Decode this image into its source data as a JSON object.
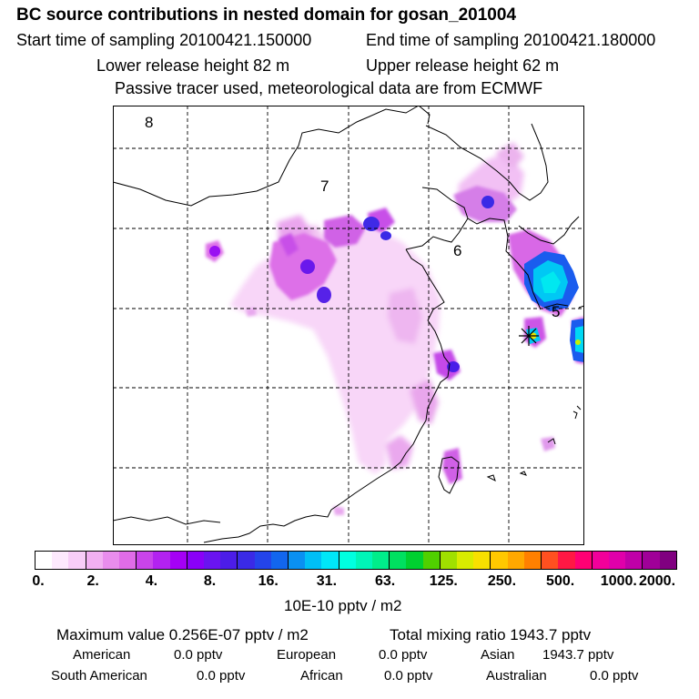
{
  "header": {
    "title": "BC  source contributions in nested domain for gosan_201004",
    "sampling_start": "Start time of sampling 20100421.150000",
    "sampling_end": "End time of sampling 20100421.180000",
    "release_lower": "Lower release height   82 m",
    "release_upper": "Upper release height   62 m",
    "tracer_note": "Passive tracer used, meteorological data are from ECMWF"
  },
  "map": {
    "region_labels": [
      "8",
      "7",
      "6",
      "5"
    ],
    "receptor_marker": "gosan-station-star"
  },
  "legend": {
    "ticks": [
      "0.",
      "2.",
      "4.",
      "8.",
      "16.",
      "31.",
      "63.",
      "125.",
      "250.",
      "500.",
      "1000.",
      "2000."
    ],
    "units": "10E-10 pptv / m2",
    "colors": [
      "#ffffff",
      "#fde9fd",
      "#f8cdf8",
      "#f2b0f2",
      "#e98ded",
      "#e06ce8",
      "#c944ea",
      "#b322f0",
      "#a500f5",
      "#8a00f8",
      "#6a14f0",
      "#4c1de8",
      "#3a2ae6",
      "#2444ea",
      "#1266ee",
      "#0a90f2",
      "#00bff6",
      "#00e7f8",
      "#00ffe0",
      "#00f5b8",
      "#00ee8a",
      "#00e060",
      "#00d030",
      "#50d000",
      "#a0e000",
      "#d8ec00",
      "#f8e000",
      "#ffc800",
      "#ffa800",
      "#ff8000",
      "#ff5020",
      "#ff1844",
      "#ff0074",
      "#f2009a",
      "#e000aa",
      "#c000a8",
      "#a00098",
      "#800080"
    ]
  },
  "stats": {
    "maximum_value": "Maximum value  0.256E-07 pptv / m2",
    "total_mixing_ratio": "Total mixing ratio     1943.7 pptv",
    "regions": [
      {
        "name": "American",
        "value": "0.0 pptv"
      },
      {
        "name": "European",
        "value": "0.0 pptv"
      },
      {
        "name": "Asian",
        "value": "1943.7 pptv"
      },
      {
        "name": "South American",
        "value": "0.0 pptv"
      },
      {
        "name": "African",
        "value": "0.0 pptv"
      },
      {
        "name": "Australian",
        "value": "0.0 pptv"
      }
    ]
  }
}
